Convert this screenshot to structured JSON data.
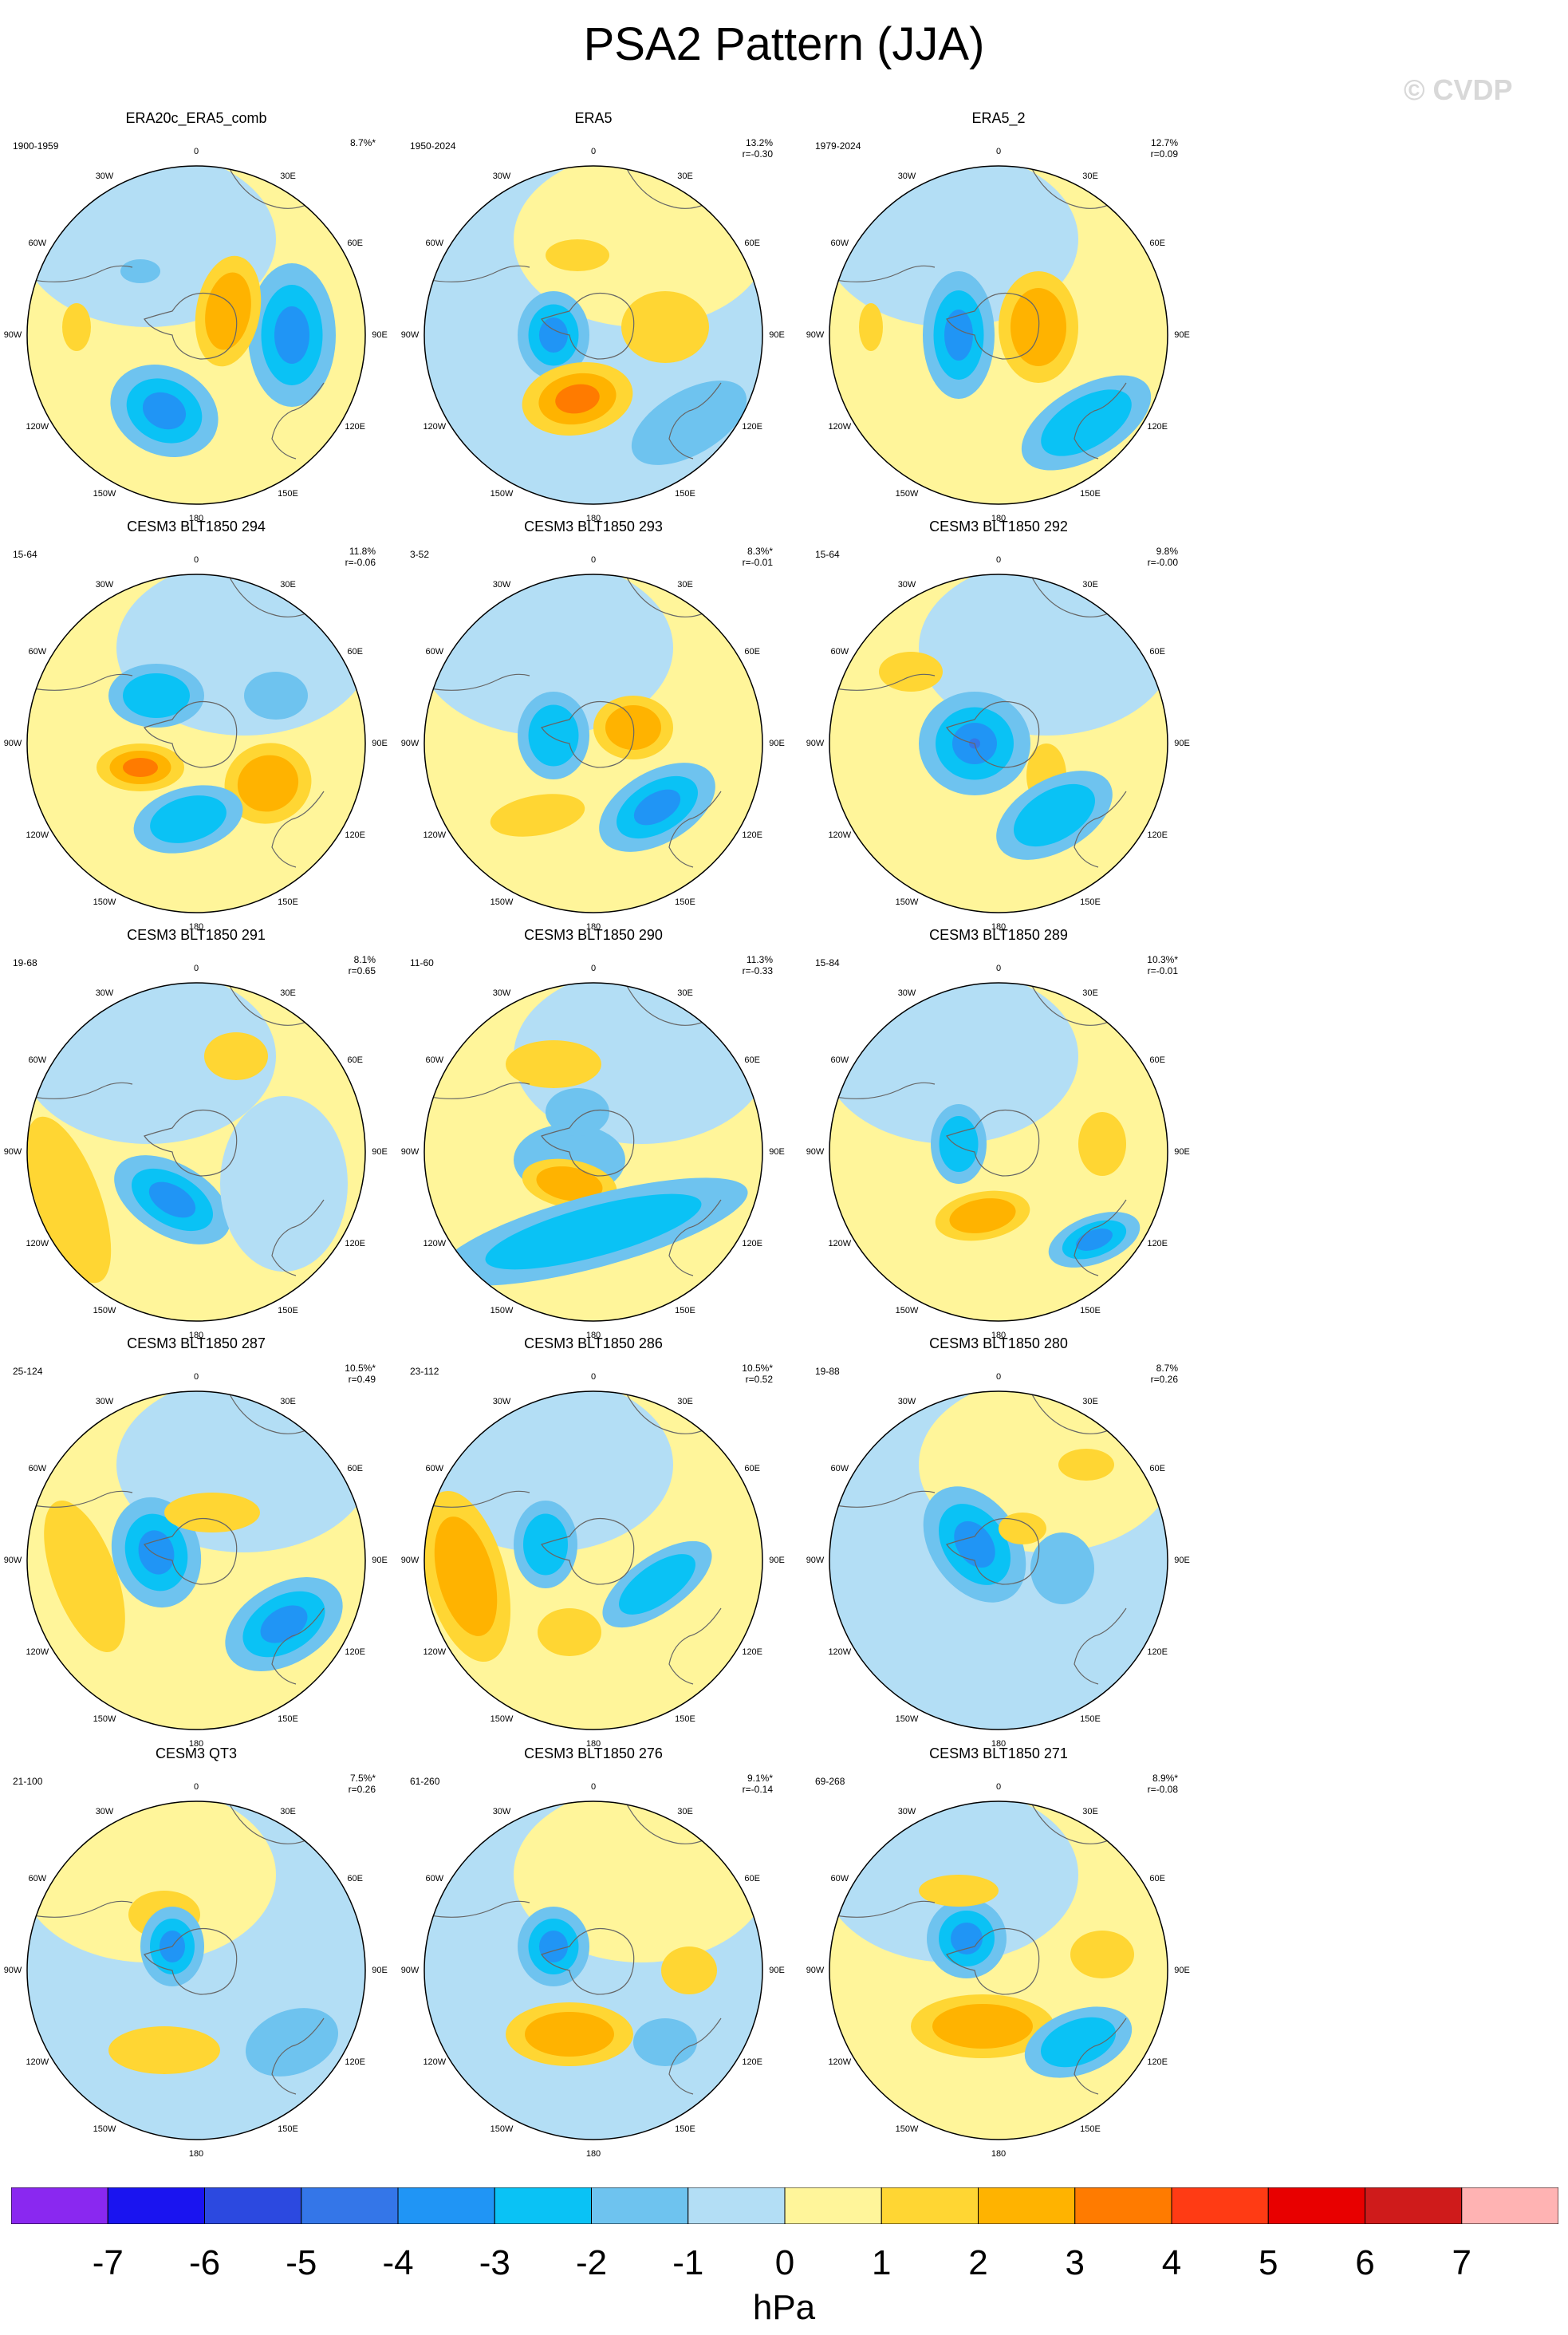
{
  "title": "PSA2 Pattern (JJA)",
  "watermark": "© CVDP",
  "longitude_labels": [
    "0",
    "30E",
    "60E",
    "90E",
    "120E",
    "150E",
    "180",
    "150W",
    "120W",
    "90W",
    "60W",
    "30W"
  ],
  "colors": {
    "land_outline": "#666666",
    "levels": [
      "#8a28f0",
      "#1a14f0",
      "#2c49e0",
      "#3476e8",
      "#2095f5",
      "#0ac2f5",
      "#6ec3ef",
      "#b3def5",
      "#fff59a",
      "#ffd633",
      "#ffb300",
      "#ff7b00",
      "#ff3b14",
      "#e80000",
      "#cf1b1b",
      "#ffb3b3"
    ]
  },
  "panels": [
    {
      "title": "ERA20c_ERA5_comb",
      "years": "1900-1959",
      "pct": "8.7%*",
      "r": ""
    },
    {
      "title": "ERA5",
      "years": "1950-2024",
      "pct": "13.2%",
      "r": "r=-0.30"
    },
    {
      "title": "ERA5_2",
      "years": "1979-2024",
      "pct": "12.7%",
      "r": "r=0.09"
    },
    {
      "title": "CESM3 BLT1850 294",
      "years": "15-64",
      "pct": "11.8%",
      "r": "r=-0.06"
    },
    {
      "title": "CESM3 BLT1850 293",
      "years": "3-52",
      "pct": "8.3%*",
      "r": "r=-0.01"
    },
    {
      "title": "CESM3 BLT1850 292",
      "years": "15-64",
      "pct": "9.8%",
      "r": "r=-0.00"
    },
    {
      "title": "CESM3 BLT1850 291",
      "years": "19-68",
      "pct": "8.1%",
      "r": "r=0.65"
    },
    {
      "title": "CESM3 BLT1850 290",
      "years": "11-60",
      "pct": "11.3%",
      "r": "r=-0.33"
    },
    {
      "title": "CESM3 BLT1850 289",
      "years": "15-84",
      "pct": "10.3%*",
      "r": "r=-0.01"
    },
    {
      "title": "CESM3 BLT1850 287",
      "years": "25-124",
      "pct": "10.5%*",
      "r": "r=0.49"
    },
    {
      "title": "CESM3 BLT1850 286",
      "years": "23-112",
      "pct": "10.5%*",
      "r": "r=0.52"
    },
    {
      "title": "CESM3 BLT1850 280",
      "years": "19-88",
      "pct": "8.7%",
      "r": "r=0.26"
    },
    {
      "title": "CESM3 QT3",
      "years": "21-100",
      "pct": "7.5%*",
      "r": "r=0.26"
    },
    {
      "title": "CESM3 BLT1850 276",
      "years": "61-260",
      "pct": "9.1%*",
      "r": "r=-0.14"
    },
    {
      "title": "CESM3 BLT1850 271",
      "years": "69-268",
      "pct": "8.9%*",
      "r": "r=-0.08"
    }
  ],
  "colorbar": {
    "labels": [
      "-7",
      "-6",
      "-5",
      "-4",
      "-3",
      "-2",
      "-1",
      "0",
      "1",
      "2",
      "3",
      "4",
      "5",
      "6",
      "7"
    ],
    "units": "hPa"
  }
}
